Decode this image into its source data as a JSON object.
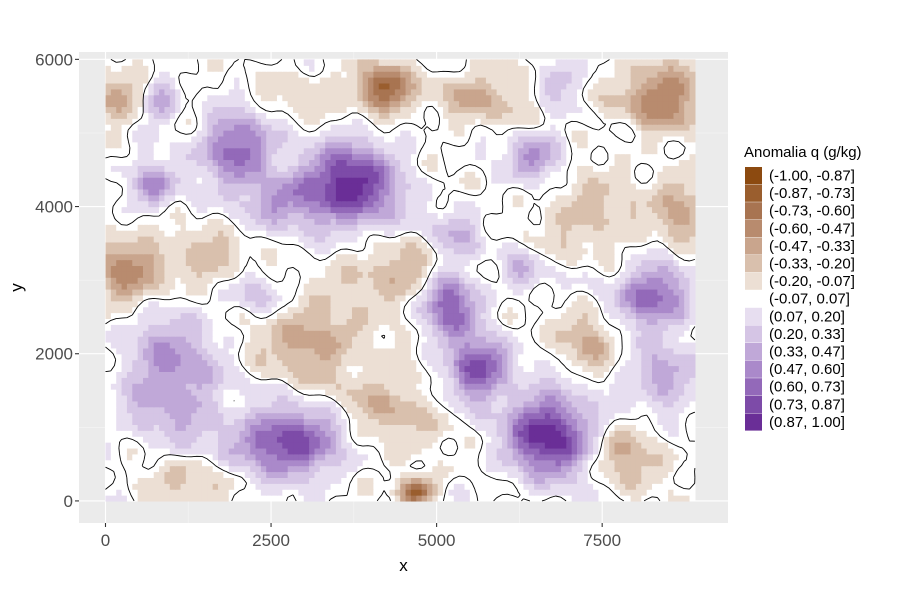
{
  "chart_data": {
    "type": "heatmap",
    "subtype": "filled-contour",
    "xlabel": "x",
    "ylabel": "y",
    "xlim": [
      -400,
      9400
    ],
    "ylim": [
      -300,
      6100
    ],
    "x_ticks": [
      0,
      2500,
      5000,
      7500
    ],
    "x_tick_labels": [
      "0",
      "2500",
      "5000",
      "7500"
    ],
    "y_ticks": [
      0,
      2000,
      4000,
      6000
    ],
    "y_tick_labels": [
      "0",
      "2000",
      "4000",
      "6000"
    ],
    "data_extent": {
      "x": [
        0,
        8900
      ],
      "y": [
        0,
        6000
      ]
    },
    "grid": true,
    "zero_contour_line": true,
    "legend": {
      "title": "Anomalia q (g/kg)",
      "position": "right",
      "bins": [
        {
          "label": "(-1.00, -0.87]",
          "color": "#8c4a10"
        },
        {
          "label": "(-0.87, -0.73]",
          "color": "#9a5e2e"
        },
        {
          "label": "(-0.73, -0.60]",
          "color": "#a87451"
        },
        {
          "label": "(-0.60, -0.47]",
          "color": "#b88b6e"
        },
        {
          "label": "(-0.47, -0.33]",
          "color": "#c9a58d"
        },
        {
          "label": "(-0.33, -0.20]",
          "color": "#d9c0ad"
        },
        {
          "label": "(-0.20, -0.07]",
          "color": "#ecdfd4"
        },
        {
          "label": "(-0.07, 0.07]",
          "color": "#ffffff"
        },
        {
          "label": "(0.07, 0.20]",
          "color": "#e7def0"
        },
        {
          "label": "(0.20, 0.33]",
          "color": "#d5c5e5"
        },
        {
          "label": "(0.33, 0.47]",
          "color": "#c0a8d8"
        },
        {
          "label": "(0.47, 0.60]",
          "color": "#aa89ca"
        },
        {
          "label": "(0.60, 0.73]",
          "color": "#9369b9"
        },
        {
          "label": "(0.73, 0.87]",
          "color": "#7d4ba8"
        },
        {
          "label": "(0.87, 1.00]",
          "color": "#6a2e97"
        }
      ]
    },
    "blobs": [
      {
        "x": 3700,
        "y": 4300,
        "rx": 700,
        "ry": 550,
        "v": 0.92
      },
      {
        "x": 2000,
        "y": 4800,
        "rx": 500,
        "ry": 450,
        "v": 0.75
      },
      {
        "x": 700,
        "y": 4300,
        "rx": 350,
        "ry": 300,
        "v": 0.55
      },
      {
        "x": 800,
        "y": 5400,
        "rx": 250,
        "ry": 250,
        "v": 0.5
      },
      {
        "x": 2700,
        "y": 4100,
        "rx": 600,
        "ry": 350,
        "v": 0.45
      },
      {
        "x": 5200,
        "y": 2700,
        "rx": 400,
        "ry": 450,
        "v": 0.78
      },
      {
        "x": 5600,
        "y": 1800,
        "rx": 450,
        "ry": 400,
        "v": 0.82
      },
      {
        "x": 6700,
        "y": 900,
        "rx": 650,
        "ry": 550,
        "v": 0.95
      },
      {
        "x": 2800,
        "y": 800,
        "rx": 800,
        "ry": 450,
        "v": 0.88
      },
      {
        "x": 1000,
        "y": 1700,
        "rx": 700,
        "ry": 900,
        "v": 0.5
      },
      {
        "x": 8300,
        "y": 2800,
        "rx": 550,
        "ry": 400,
        "v": 0.72
      },
      {
        "x": 8400,
        "y": 1700,
        "rx": 450,
        "ry": 400,
        "v": 0.45
      },
      {
        "x": 6500,
        "y": 4700,
        "rx": 400,
        "ry": 300,
        "v": 0.5
      },
      {
        "x": 6800,
        "y": 5700,
        "rx": 300,
        "ry": 250,
        "v": 0.4
      },
      {
        "x": 5300,
        "y": 3600,
        "rx": 450,
        "ry": 400,
        "v": 0.3
      },
      {
        "x": 6300,
        "y": 3100,
        "rx": 300,
        "ry": 250,
        "v": 0.35
      },
      {
        "x": 2300,
        "y": 2800,
        "rx": 350,
        "ry": 250,
        "v": 0.3
      },
      {
        "x": 4200,
        "y": 5600,
        "rx": 400,
        "ry": 300,
        "v": -0.8
      },
      {
        "x": 8400,
        "y": 5500,
        "rx": 600,
        "ry": 450,
        "v": -0.62
      },
      {
        "x": 300,
        "y": 3100,
        "rx": 550,
        "ry": 500,
        "v": -0.52
      },
      {
        "x": 4700,
        "y": 150,
        "rx": 250,
        "ry": 180,
        "v": -0.85
      },
      {
        "x": 3100,
        "y": 2200,
        "rx": 700,
        "ry": 500,
        "v": -0.45
      },
      {
        "x": 4500,
        "y": 3100,
        "rx": 900,
        "ry": 400,
        "v": -0.35
      },
      {
        "x": 1500,
        "y": 3300,
        "rx": 600,
        "ry": 350,
        "v": -0.3
      },
      {
        "x": 8700,
        "y": 4000,
        "rx": 400,
        "ry": 500,
        "v": -0.4
      },
      {
        "x": 7300,
        "y": 2200,
        "rx": 400,
        "ry": 400,
        "v": -0.35
      },
      {
        "x": 4200,
        "y": 1200,
        "rx": 800,
        "ry": 600,
        "v": -0.3
      },
      {
        "x": 7800,
        "y": 600,
        "rx": 500,
        "ry": 400,
        "v": -0.35
      },
      {
        "x": 200,
        "y": 5500,
        "rx": 500,
        "ry": 400,
        "v": -0.3
      },
      {
        "x": 5700,
        "y": 5500,
        "rx": 700,
        "ry": 350,
        "v": -0.35
      },
      {
        "x": 7300,
        "y": 3900,
        "rx": 700,
        "ry": 500,
        "v": -0.28
      },
      {
        "x": 1300,
        "y": 300,
        "rx": 800,
        "ry": 300,
        "v": -0.25
      },
      {
        "x": 3000,
        "y": 5500,
        "rx": 500,
        "ry": 350,
        "v": -0.2
      }
    ]
  }
}
